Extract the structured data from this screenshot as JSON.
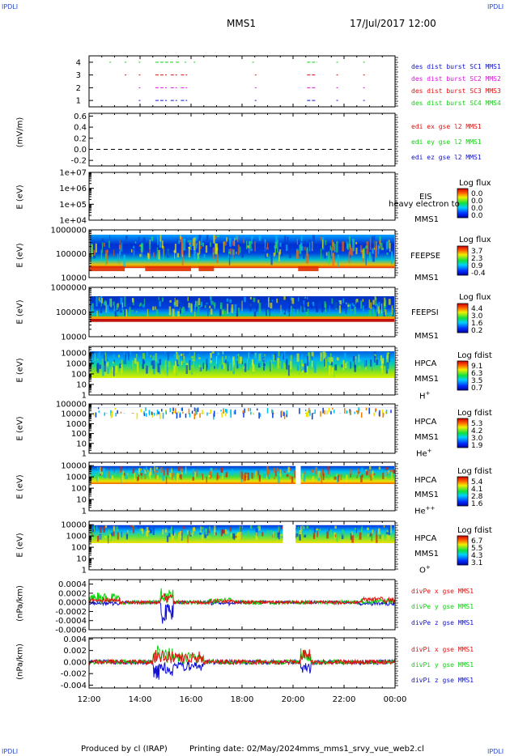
{
  "header": {
    "corner_label": "IPDLI",
    "mission": "MMS1",
    "datetime": "17/Jul/2017 12:00"
  },
  "footer": {
    "produced_by": "Produced by cl (IRAP)",
    "printing_date": "Printing date: 02/May/2024",
    "filename": "mms_mms1_srvy_vue_web2.cl"
  },
  "colors": {
    "red": "#e01010",
    "green": "#10d010",
    "blue": "#1010d0",
    "magenta": "#e010e0"
  },
  "panels": {
    "burst": {
      "legend": [
        "des dist burst SC1 MMS1",
        "des dist burst SC2 MMS2",
        "des dist burst SC3 MMS3",
        "des dist burst SC4 MMS4"
      ]
    },
    "edi": {
      "ylabel": "(mV/m)",
      "legend": [
        "edi ex gse l2 MMS1",
        "edi ey gse l2 MMS1",
        "edi ez gse l2 MMS1"
      ]
    },
    "eis": {
      "ylabel": "E (eV)",
      "label1": "EIS",
      "label2": "heavy electron to",
      "label3": "MMS1",
      "cb_title": "Log flux",
      "cb_ticks": [
        "0.0",
        "0.0",
        "0.0",
        "0.0"
      ]
    },
    "feepse": {
      "ylabel": "E (eV)",
      "label1": "FEEPSE",
      "label2": "MMS1",
      "cb_title": "Log flux",
      "cb_ticks": [
        "3.7",
        "2.3",
        "0.9",
        "-0.4"
      ]
    },
    "feepsi": {
      "ylabel": "E (eV)",
      "label1": "FEEPSI",
      "label2": "MMS1",
      "cb_title": "Log flux",
      "cb_ticks": [
        "4.4",
        "3.0",
        "1.6",
        "0.2"
      ]
    },
    "hpca_h": {
      "ylabel": "E (eV)",
      "label1": "HPCA",
      "label2": "MMS1",
      "label3": "H",
      "charge": "+",
      "cb_title": "Log fdist",
      "cb_ticks": [
        "9.1",
        "6.3",
        "3.5",
        "0.7"
      ]
    },
    "hpca_he": {
      "ylabel": "E (eV)",
      "label1": "HPCA",
      "label2": "MMS1",
      "label3": "He",
      "charge": "+",
      "cb_title": "Log fdist",
      "cb_ticks": [
        "5.3",
        "4.2",
        "3.0",
        "1.9"
      ]
    },
    "hpca_hepp": {
      "ylabel": "E (eV)",
      "label1": "HPCA",
      "label2": "MMS1",
      "label3": "He",
      "charge": "++",
      "cb_title": "Log fdist",
      "cb_ticks": [
        "5.4",
        "4.1",
        "2.8",
        "1.6"
      ]
    },
    "hpca_o": {
      "ylabel": "E (eV)",
      "label1": "HPCA",
      "label2": "MMS1",
      "label3": "O",
      "charge": "+",
      "cb_title": "Log fdist",
      "cb_ticks": [
        "6.7",
        "5.5",
        "4.3",
        "3.1"
      ]
    },
    "divpe": {
      "ylabel": "(nPa/km)",
      "legend": [
        "divPe x gse MMS1",
        "divPe y gse MMS1",
        "divPe z gse MMS1"
      ]
    },
    "divpi": {
      "ylabel": "(nPa/km)",
      "legend": [
        "divPi x gse MMS1",
        "divPi y gse MMS1",
        "divPi z gse MMS1"
      ]
    }
  },
  "chart_data": [
    {
      "type": "scatter",
      "panel": "burst",
      "x_axis": "UT time",
      "xlim": [
        "12:00",
        "00:00"
      ],
      "x_ticks": [
        "12:00",
        "14:00",
        "16:00",
        "18:00",
        "20:00",
        "22:00",
        "00:00"
      ],
      "yticks": [
        "4",
        "3",
        "2",
        "1"
      ],
      "ylim": [
        0.5,
        4.5
      ],
      "series": [
        {
          "name": "des dist burst SC1 MMS1",
          "y": 1,
          "color": "#1010d0",
          "intervals_hours": [
            [
              13.95,
              14.0
            ],
            [
              14.6,
              15.05
            ],
            [
              15.2,
              15.45
            ],
            [
              15.6,
              15.85
            ],
            [
              18.5,
              18.55
            ],
            [
              20.55,
              20.9
            ],
            [
              21.7,
              21.75
            ],
            [
              22.75,
              22.8
            ]
          ]
        },
        {
          "name": "des dist burst SC2 MMS2",
          "y": 2,
          "color": "#e010e0",
          "intervals_hours": [
            [
              13.95,
              14.0
            ],
            [
              14.6,
              15.05
            ],
            [
              15.2,
              15.45
            ],
            [
              15.6,
              15.85
            ],
            [
              18.5,
              18.55
            ],
            [
              20.55,
              20.9
            ],
            [
              21.7,
              21.75
            ],
            [
              22.75,
              22.8
            ]
          ]
        },
        {
          "name": "des dist burst SC3 MMS3",
          "y": 3,
          "color": "#e01010",
          "intervals_hours": [
            [
              13.4,
              13.45
            ],
            [
              13.95,
              14.0
            ],
            [
              14.6,
              15.05
            ],
            [
              15.2,
              15.45
            ],
            [
              15.6,
              15.85
            ],
            [
              18.5,
              18.55
            ],
            [
              20.55,
              20.9
            ],
            [
              21.7,
              21.75
            ],
            [
              22.75,
              22.8
            ]
          ]
        },
        {
          "name": "des dist burst SC4 MMS4",
          "y": 4,
          "color": "#10d010",
          "intervals_hours": [
            [
              12.8,
              12.85
            ],
            [
              13.4,
              13.45
            ],
            [
              13.95,
              14.0
            ],
            [
              14.6,
              15.3
            ],
            [
              15.4,
              15.55
            ],
            [
              15.75,
              15.85
            ],
            [
              16.1,
              16.15
            ],
            [
              18.4,
              18.45
            ],
            [
              20.55,
              20.95
            ],
            [
              21.7,
              21.75
            ],
            [
              22.75,
              22.8
            ]
          ]
        }
      ]
    },
    {
      "type": "line",
      "panel": "edi",
      "ylabel": "(mV/m)",
      "yticks": [
        "0.6",
        "0.4",
        "0.2",
        "0.0",
        "-0.2"
      ],
      "ylim": [
        -0.3,
        0.65
      ],
      "reference_line_y": 0.0,
      "series": []
    },
    {
      "type": "heatmap",
      "panel": "eis",
      "ylabel": "E (eV)",
      "y_scale": "log",
      "yticks": [
        "1e+07",
        "1e+06",
        "1e+05",
        "1e+04"
      ],
      "ylim": [
        10000,
        10000000
      ],
      "colorbar": {
        "title": "Log flux",
        "ticks": [
          "0.0",
          "0.0",
          "0.0",
          "0.0"
        ]
      }
    },
    {
      "type": "heatmap",
      "panel": "feepse",
      "ylabel": "E (eV)",
      "y_scale": "log",
      "yticks": [
        "1000000",
        "100000",
        "10000"
      ],
      "ylim": [
        10000,
        1000000
      ],
      "colorbar": {
        "title": "Log flux",
        "ticks": [
          "3.7",
          "2.3",
          "0.9",
          "-0.4"
        ]
      }
    },
    {
      "type": "heatmap",
      "panel": "feepsi",
      "ylabel": "E (eV)",
      "y_scale": "log",
      "yticks": [
        "1000000",
        "100000",
        "10000"
      ],
      "ylim": [
        10000,
        1000000
      ],
      "colorbar": {
        "title": "Log flux",
        "ticks": [
          "4.4",
          "3.0",
          "1.6",
          "0.2"
        ]
      }
    },
    {
      "type": "heatmap",
      "panel": "hpca_h",
      "ylabel": "E (eV)",
      "y_scale": "log",
      "yticks": [
        "10000",
        "1000",
        "100",
        "10",
        "1"
      ],
      "ylim": [
        1,
        40000
      ],
      "colorbar": {
        "title": "Log fdist",
        "ticks": [
          "9.1",
          "6.3",
          "3.5",
          "0.7"
        ]
      }
    },
    {
      "type": "heatmap",
      "panel": "hpca_he",
      "ylabel": "E (eV)",
      "y_scale": "log",
      "yticks": [
        "100000",
        "10000",
        "1000",
        "100",
        "10",
        "1"
      ],
      "ylim": [
        1,
        100000
      ],
      "colorbar": {
        "title": "Log fdist",
        "ticks": [
          "5.3",
          "4.2",
          "3.0",
          "1.9"
        ]
      }
    },
    {
      "type": "heatmap",
      "panel": "hpca_hepp",
      "ylabel": "E (eV)",
      "y_scale": "log",
      "yticks": [
        "10000",
        "1000",
        "100",
        "10",
        "1"
      ],
      "ylim": [
        1,
        20000
      ],
      "colorbar": {
        "title": "Log fdist",
        "ticks": [
          "5.4",
          "4.1",
          "2.8",
          "1.6"
        ]
      }
    },
    {
      "type": "heatmap",
      "panel": "hpca_o",
      "ylabel": "E (eV)",
      "y_scale": "log",
      "yticks": [
        "10000",
        "1000",
        "100",
        "10",
        "1"
      ],
      "ylim": [
        1,
        20000
      ],
      "colorbar": {
        "title": "Log fdist",
        "ticks": [
          "6.7",
          "5.5",
          "4.3",
          "3.1"
        ]
      }
    },
    {
      "type": "line",
      "panel": "divpe",
      "ylabel": "(nPa/km)",
      "yticks": [
        "0.0004",
        "0.0002",
        "0.0000",
        "-0.0002",
        "-0.0004",
        "-0.0006"
      ],
      "ylim": [
        -0.0006,
        0.0005
      ],
      "series": [
        {
          "name": "divPe x gse MMS1",
          "color": "#e01010"
        },
        {
          "name": "divPe y gse MMS1",
          "color": "#10d010"
        },
        {
          "name": "divPe z gse MMS1",
          "color": "#1010d0"
        }
      ]
    },
    {
      "type": "line",
      "panel": "divpi",
      "ylabel": "(nPa/km)",
      "yticks": [
        "0.004",
        "0.002",
        "0.000",
        "-0.002",
        "-0.004"
      ],
      "ylim": [
        -0.0045,
        0.0042
      ],
      "series": [
        {
          "name": "divPi x gse MMS1",
          "color": "#e01010"
        },
        {
          "name": "divPi y gse MMS1",
          "color": "#10d010"
        },
        {
          "name": "divPi z gse MMS1",
          "color": "#1010d0"
        }
      ]
    }
  ]
}
